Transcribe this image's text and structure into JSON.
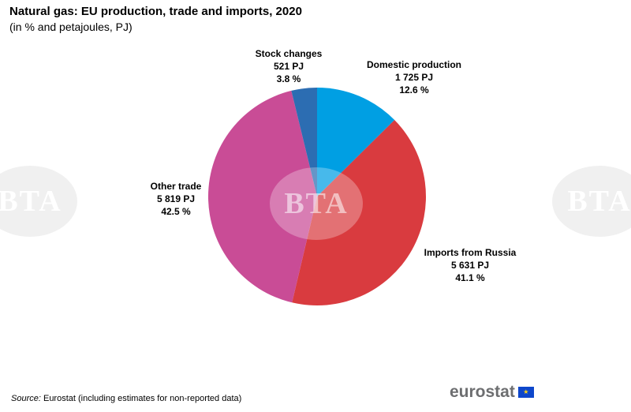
{
  "title": "Natural gas: EU production, trade and imports, 2020",
  "subtitle": "(in % and petajoules, PJ)",
  "chart_data": {
    "type": "pie",
    "start_angle_deg": 0,
    "direction": "clockwise",
    "slices": [
      {
        "name": "Domestic production",
        "pj": "1 725 PJ",
        "pct_label": "12.6 %",
        "value": 12.6,
        "color": "#009fe3"
      },
      {
        "name": "Imports from Russia",
        "pj": "5 631 PJ",
        "pct_label": "41.1 %",
        "value": 41.1,
        "color": "#d93b3f"
      },
      {
        "name": "Other trade",
        "pj": "5 819 PJ",
        "pct_label": "42.5 %",
        "value": 42.5,
        "color": "#c94c96"
      },
      {
        "name": "Stock changes",
        "pj": "521 PJ",
        "pct_label": "3.8 %",
        "value": 3.8,
        "color": "#2c6db2"
      }
    ]
  },
  "watermark": "BTA",
  "source": {
    "label": "Source:",
    "text": " Eurostat (including estimates for non-reported data)"
  },
  "logo": "eurostat"
}
